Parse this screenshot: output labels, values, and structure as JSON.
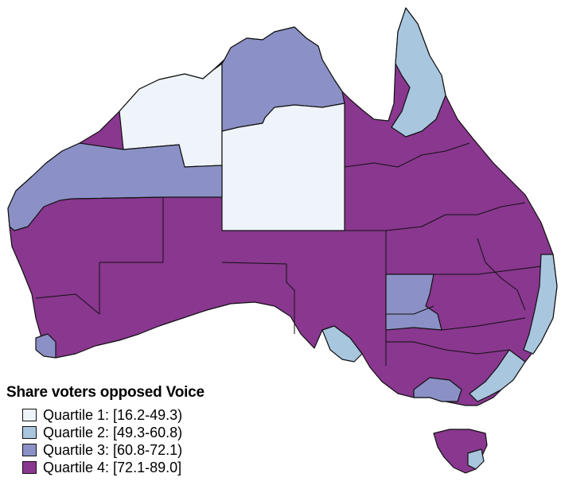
{
  "legend": {
    "title": "Share voters opposed Voice",
    "items": [
      {
        "label": "Quartile 1: [16.2-49.3)",
        "color": "#eef4f9"
      },
      {
        "label": "Quartile 2: [49.3-60.8)",
        "color": "#a9c6df"
      },
      {
        "label": "Quartile 3: [60.8-72.1)",
        "color": "#8b91c6"
      },
      {
        "label": "Quartile 4: [72.1-89.0]",
        "color": "#89378f"
      }
    ]
  },
  "colors": {
    "q1": "#eef4f9",
    "q2": "#a9c6df",
    "q3": "#8b91c6",
    "q4": "#89378f",
    "border": "#111111"
  }
}
